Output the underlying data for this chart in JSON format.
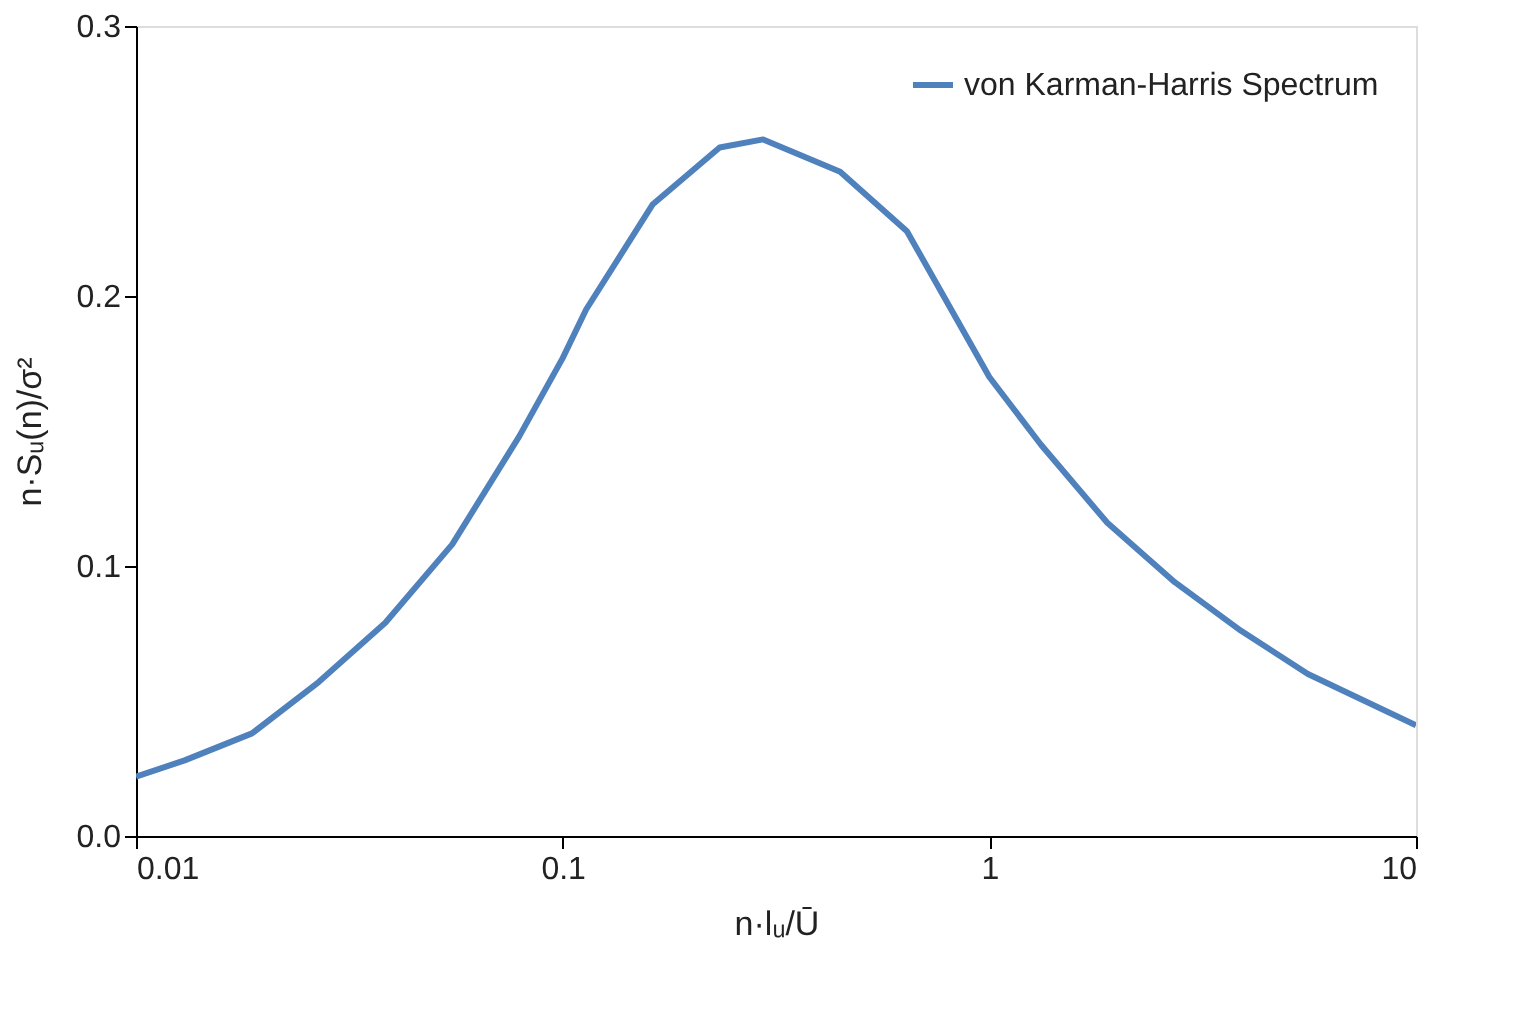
{
  "chart_data": {
    "type": "line",
    "xlabel": "n·lᵤ/Ū",
    "ylabel": "n·Sᵤ(n)/σ²",
    "x": [
      0.01,
      0.013,
      0.0187,
      0.0268,
      0.0384,
      0.0551,
      0.0791,
      0.1,
      0.1135,
      0.1627,
      0.2333,
      0.295,
      0.447,
      0.641,
      1,
      1.32,
      1.89,
      2.72,
      3.89,
      5.58,
      10
    ],
    "series": [
      {
        "name": "von Karman-Harris Spectrum",
        "color": "#4f81bd",
        "values": [
          0.022,
          0.028,
          0.038,
          0.057,
          0.079,
          0.108,
          0.148,
          0.177,
          0.195,
          0.234,
          0.255,
          0.258,
          0.246,
          0.224,
          0.17,
          0.145,
          0.116,
          0.094,
          0.076,
          0.06,
          0.041
        ]
      }
    ],
    "xlim": [
      0.01,
      10
    ],
    "xticks": [
      0.01,
      0.1,
      1,
      10
    ],
    "ylim": [
      0,
      0.3
    ],
    "yticks": [
      {
        "value": 0,
        "label": "0.0"
      },
      {
        "value": 0.1,
        "label": "0.1"
      },
      {
        "value": 0.2,
        "label": "0.2"
      },
      {
        "value": 0.3,
        "label": "0.3"
      }
    ],
    "log": "x",
    "grid": false,
    "legend": "top right",
    "marker": "none",
    "line_style": "solid"
  }
}
